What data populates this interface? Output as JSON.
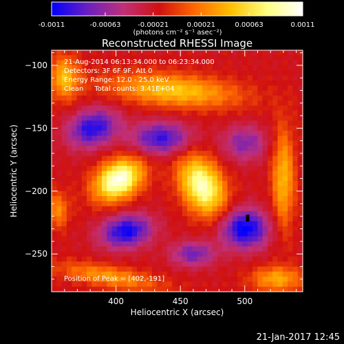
{
  "colorbar": {
    "ticks": [
      "-0.0011",
      "-0.00063",
      "-0.00021",
      "0.00021",
      "0.00063",
      "0.0011"
    ],
    "unit_label": "(photons cm⁻² s⁻¹ asec⁻²)"
  },
  "header": {
    "line1": "21-Aug-2014 06:13:34.000 to 06:23:34.000",
    "line2": "Detectors: 3F 6F 9F, Att 0",
    "line3": "Energy Range: 12.0 - 25.0 keV",
    "line4": "Clean     Total counts: 3.41E+04"
  },
  "peak_label": "Position of Peak = [402,-191]",
  "footer_date": "21-Jan-2017 12:45",
  "chart_data": {
    "type": "heatmap",
    "title": "Reconstructed RHESSI Image",
    "xlabel": "Heliocentric X (arcsec)",
    "ylabel": "Heliocentric Y (arcsec)",
    "xlim": [
      350,
      545
    ],
    "ylim": [
      -280,
      -88
    ],
    "x_ticks": [
      400,
      450,
      500
    ],
    "y_ticks": [
      -100,
      -150,
      -200,
      -250
    ],
    "x_tick_labels": [
      "400",
      "450",
      "500"
    ],
    "y_tick_labels": [
      "−100",
      "−150",
      "−200",
      "−250"
    ],
    "colormap_range": [
      -0.0011,
      0.0011
    ],
    "colormap_stops": [
      "#0000ff",
      "#6a1fc0",
      "#c03078",
      "#d01010",
      "#ff6a00",
      "#ffc000",
      "#ffff80",
      "#ffffff"
    ],
    "sources": [
      {
        "x": 402,
        "y": -191,
        "amp": 1.0,
        "sx": 14,
        "sy": 10,
        "angle": 35
      },
      {
        "x": 467,
        "y": -196,
        "amp": 0.9,
        "sx": 11,
        "sy": 17,
        "angle": 25
      },
      {
        "x": 445,
        "y": -120,
        "amp": 0.55,
        "sx": 35,
        "sy": 9,
        "angle": -5
      },
      {
        "x": 530,
        "y": -190,
        "amp": 0.5,
        "sx": 6,
        "sy": 28,
        "angle": 0
      },
      {
        "x": 395,
        "y": -268,
        "amp": 0.4,
        "sx": 28,
        "sy": 6,
        "angle": -10
      },
      {
        "x": 525,
        "y": -270,
        "amp": 0.45,
        "sx": 14,
        "sy": 7,
        "angle": 0
      },
      {
        "x": 360,
        "y": -110,
        "amp": 0.5,
        "sx": 8,
        "sy": 12,
        "angle": 0
      },
      {
        "x": 355,
        "y": -215,
        "amp": 0.35,
        "sx": 6,
        "sy": 10,
        "angle": 0
      },
      {
        "x": 382,
        "y": -150,
        "amp": -0.65,
        "sx": 14,
        "sy": 10,
        "angle": 20
      },
      {
        "x": 435,
        "y": -158,
        "amp": -0.6,
        "sx": 16,
        "sy": 9,
        "angle": 0
      },
      {
        "x": 408,
        "y": -232,
        "amp": -0.7,
        "sx": 14,
        "sy": 9,
        "angle": 10
      },
      {
        "x": 500,
        "y": -230,
        "amp": -0.75,
        "sx": 13,
        "sy": 11,
        "angle": 0
      },
      {
        "x": 500,
        "y": -162,
        "amp": -0.4,
        "sx": 12,
        "sy": 10,
        "angle": 0
      },
      {
        "x": 460,
        "y": -250,
        "amp": -0.45,
        "sx": 12,
        "sy": 7,
        "angle": 0
      }
    ]
  }
}
